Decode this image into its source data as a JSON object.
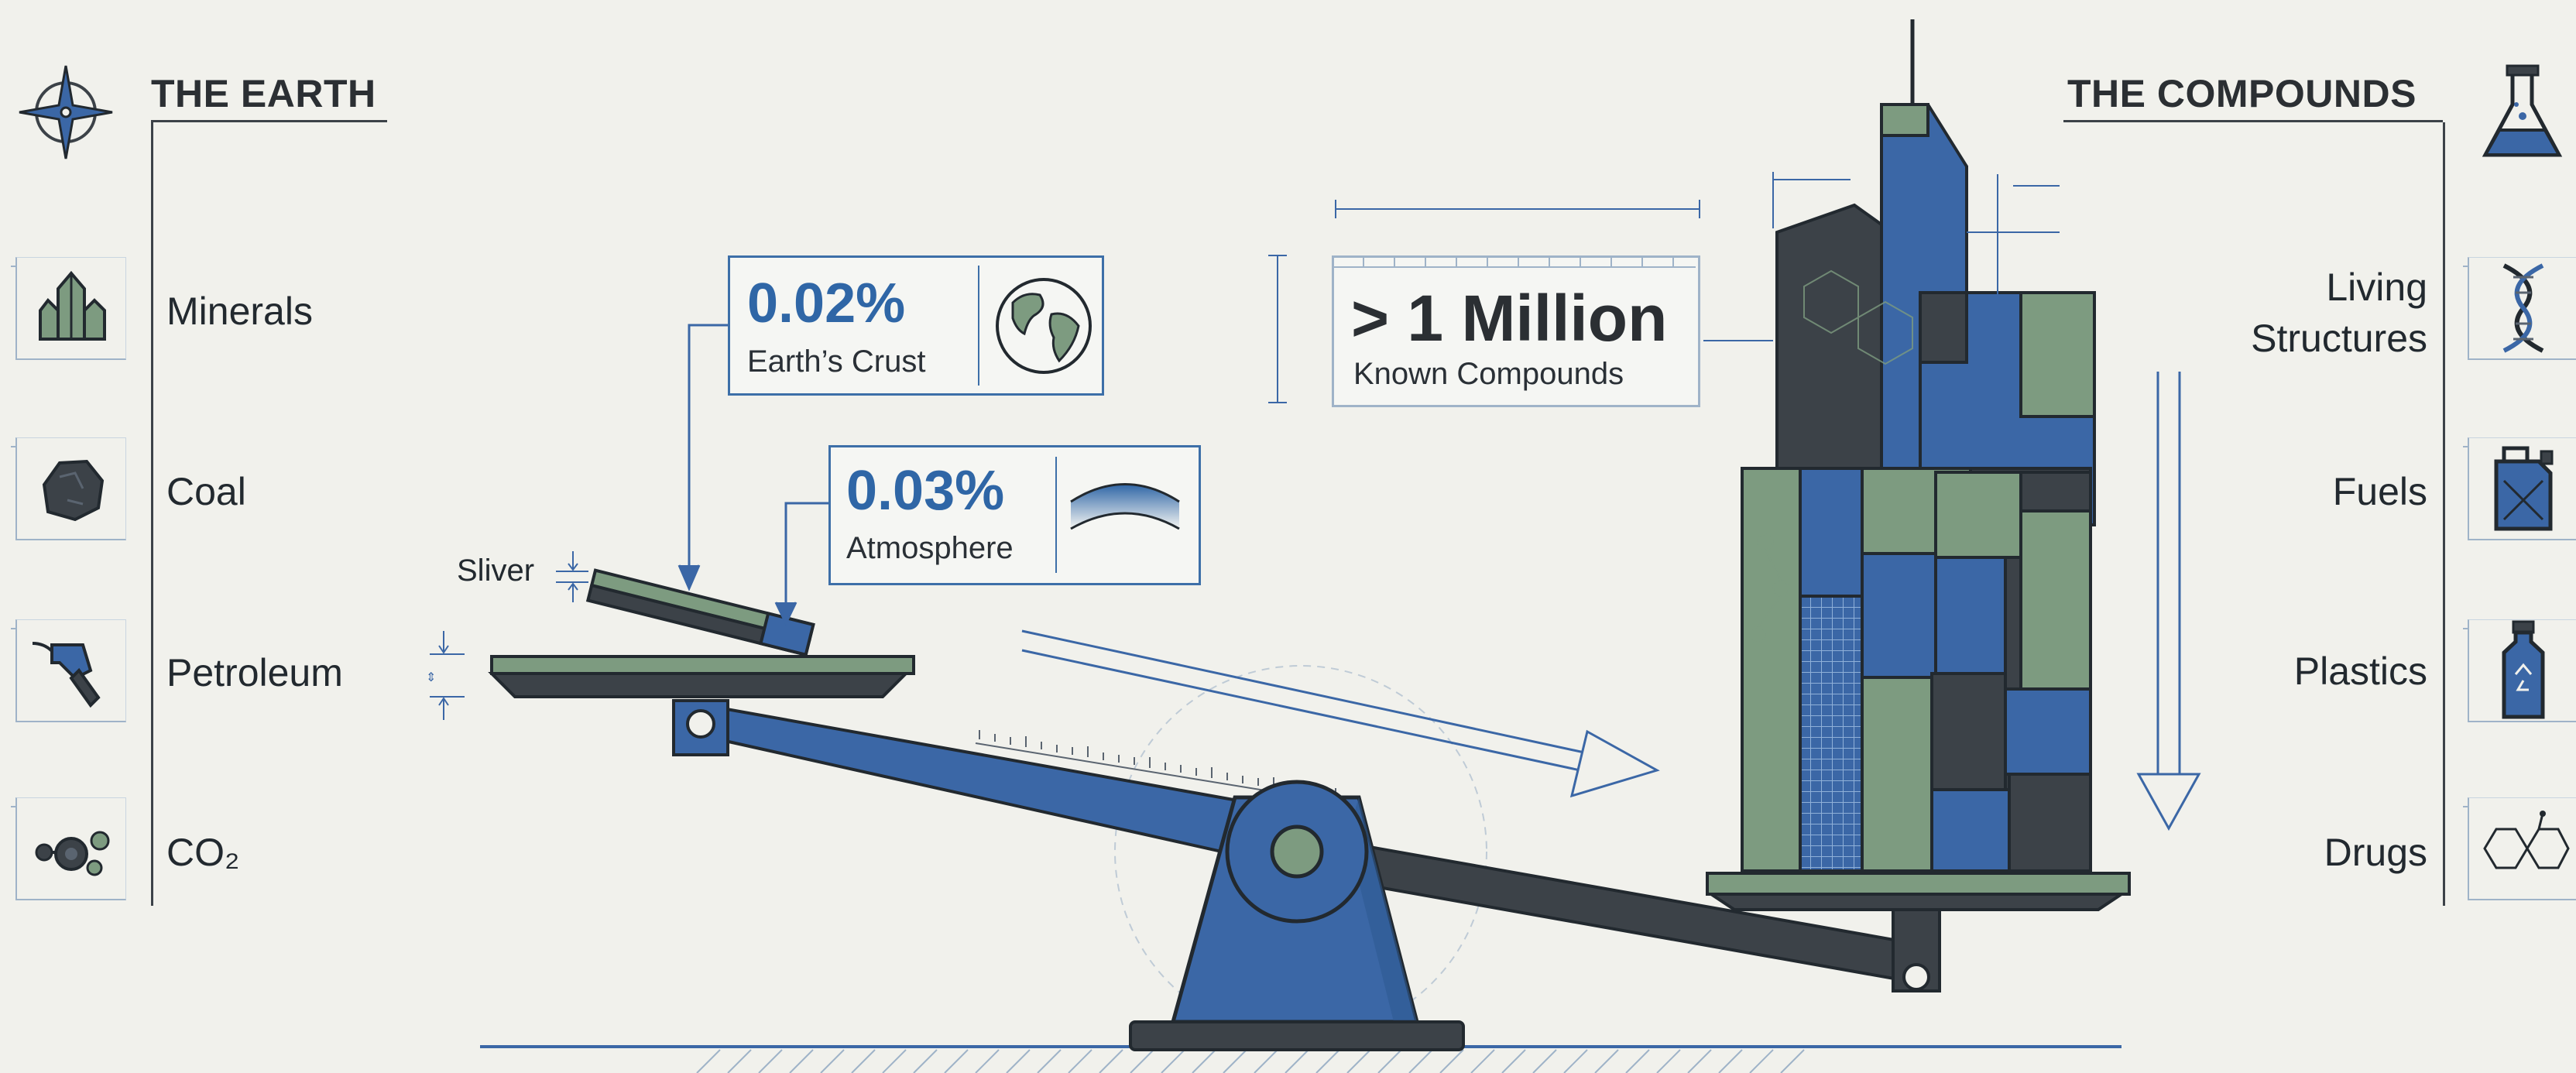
{
  "left_panel": {
    "heading": "THE EARTH",
    "items": [
      {
        "label": "Minerals",
        "icon": "crystal-icon"
      },
      {
        "label": "Coal",
        "icon": "coal-icon"
      },
      {
        "label": "Petroleum",
        "icon": "fuel-nozzle-icon"
      },
      {
        "label": "CO₂",
        "icon": "molecule-icon"
      }
    ]
  },
  "right_panel": {
    "heading": "THE COMPOUNDS",
    "items": [
      {
        "label_line1": "Living",
        "label_line2": "Structures",
        "icon": "dna-icon"
      },
      {
        "label": "Fuels",
        "icon": "jerrycan-icon"
      },
      {
        "label": "Plastics",
        "icon": "bottle-icon"
      },
      {
        "label": "Drugs",
        "icon": "drug-molecule-icon"
      }
    ]
  },
  "callouts": {
    "crust": {
      "value": "0.02%",
      "caption": "Earth’s Crust",
      "icon": "globe-icon"
    },
    "atmosphere": {
      "value": "0.03%",
      "caption": "Atmosphere",
      "icon": "atmosphere-arc-icon"
    },
    "compounds": {
      "value": "> 1 Million",
      "caption": "Known Compounds"
    }
  },
  "sliver_label": "Sliver",
  "colors": {
    "background": "#f1f1ec",
    "blue": "#3b67a6",
    "green": "#7d9b80",
    "dark": "#3c4248",
    "outline": "#22292f"
  }
}
